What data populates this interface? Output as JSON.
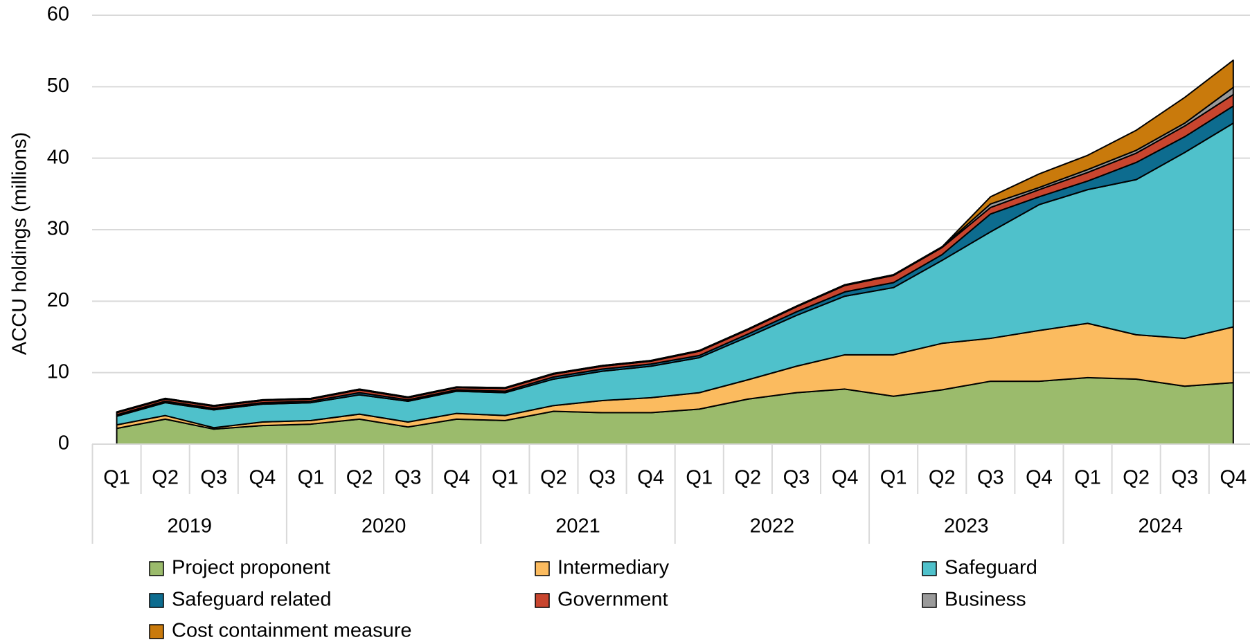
{
  "chart_data": {
    "type": "stacked_area",
    "y_axis_label": "ACCU holdings (millions)",
    "categories": [
      "Q1",
      "Q2",
      "Q3",
      "Q4",
      "Q1",
      "Q2",
      "Q3",
      "Q4",
      "Q1",
      "Q2",
      "Q3",
      "Q4",
      "Q1",
      "Q2",
      "Q3",
      "Q4",
      "Q1",
      "Q2",
      "Q3",
      "Q4",
      "Q1",
      "Q2",
      "Q3",
      "Q4"
    ],
    "groups": [
      "2019",
      "2020",
      "2021",
      "2022",
      "2023",
      "2024"
    ],
    "series": [
      {
        "name": "Project proponent",
        "color": "#9bbb6c",
        "values": [
          2.2,
          3.5,
          2.1,
          2.6,
          2.8,
          3.5,
          2.4,
          3.5,
          3.3,
          4.6,
          4.4,
          4.4,
          4.9,
          6.3,
          7.2,
          7.7,
          6.7,
          7.6,
          8.8,
          8.8,
          9.3,
          9.1,
          8.1,
          8.6
        ]
      },
      {
        "name": "Intermediary",
        "color": "#fbbb5f",
        "values": [
          0.5,
          0.5,
          0.2,
          0.5,
          0.5,
          0.7,
          0.7,
          0.8,
          0.7,
          0.8,
          1.7,
          2.1,
          2.3,
          2.7,
          3.7,
          4.8,
          5.8,
          6.5,
          6.0,
          7.1,
          7.6,
          6.2,
          6.7,
          7.8
        ]
      },
      {
        "name": "Safeguard",
        "color": "#4fc1cb",
        "values": [
          1.2,
          1.8,
          2.5,
          2.5,
          2.5,
          2.7,
          2.9,
          3.1,
          3.2,
          3.7,
          4.1,
          4.4,
          4.9,
          6.0,
          7.1,
          8.2,
          9.4,
          11.6,
          14.9,
          17.6,
          18.7,
          21.7,
          26.0,
          28.5
        ]
      },
      {
        "name": "Safeguard related",
        "color": "#0d6c8f",
        "values": [
          0.2,
          0.2,
          0.2,
          0.2,
          0.2,
          0.3,
          0.2,
          0.2,
          0.2,
          0.3,
          0.3,
          0.3,
          0.3,
          0.4,
          0.5,
          0.6,
          0.7,
          0.8,
          2.5,
          1.1,
          1.2,
          2.4,
          2.2,
          2.4
        ]
      },
      {
        "name": "Government",
        "color": "#c8452e",
        "values": [
          0.3,
          0.3,
          0.3,
          0.3,
          0.3,
          0.4,
          0.3,
          0.3,
          0.4,
          0.4,
          0.4,
          0.4,
          0.6,
          0.6,
          0.7,
          0.9,
          1.0,
          1.0,
          0.9,
          1.0,
          1.2,
          1.3,
          1.5,
          1.6
        ]
      },
      {
        "name": "Business",
        "color": "#9a9a9a",
        "values": [
          0.1,
          0.1,
          0.1,
          0.1,
          0.1,
          0.1,
          0.1,
          0.1,
          0.1,
          0.1,
          0.1,
          0.1,
          0.1,
          0.1,
          0.1,
          0.1,
          0.1,
          0.1,
          0.5,
          0.3,
          0.4,
          0.4,
          0.4,
          1.0
        ]
      },
      {
        "name": "Cost containment measure",
        "color": "#c97a0c",
        "values": [
          0,
          0,
          0,
          0,
          0,
          0,
          0,
          0,
          0,
          0,
          0,
          0,
          0,
          0,
          0,
          0,
          0,
          0,
          1.0,
          1.9,
          2.0,
          2.8,
          3.6,
          3.8
        ]
      }
    ],
    "ylim": [
      0,
      60
    ],
    "yticks": [
      0,
      10,
      20,
      30,
      40,
      50,
      60
    ],
    "grid": true
  }
}
